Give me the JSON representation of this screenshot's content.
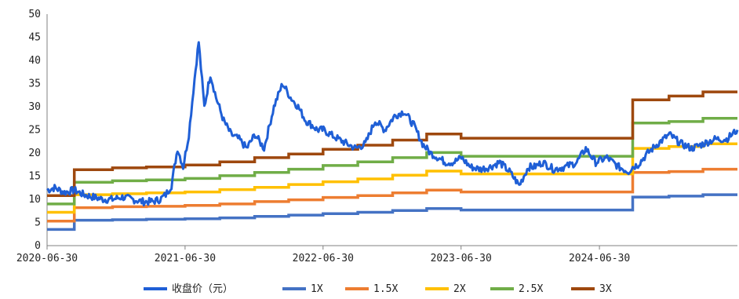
{
  "chart_data": {
    "type": "line",
    "title": "",
    "xlabel": "",
    "ylabel": "",
    "ylim": [
      0,
      50
    ],
    "xlim": [
      "2020-06-30",
      "2025-06-30"
    ],
    "y_ticks": [
      0,
      5,
      10,
      15,
      20,
      25,
      30,
      35,
      40,
      45,
      50
    ],
    "x_ticks": [
      "2020-06-30",
      "2021-06-30",
      "2022-06-30",
      "2023-06-30",
      "2024-06-30"
    ],
    "grid": false,
    "legend_position": "bottom",
    "series": [
      {
        "name": "收盘价（元）",
        "color": "#1f5fd6",
        "style": "jagged",
        "x": [
          "2020-06-30",
          "2020-07-20",
          "2020-08-15",
          "2020-09-10",
          "2020-10-05",
          "2020-10-30",
          "2020-11-25",
          "2020-12-20",
          "2021-01-15",
          "2021-02-10",
          "2021-03-10",
          "2021-04-05",
          "2021-04-25",
          "2021-05-10",
          "2021-05-25",
          "2021-06-10",
          "2021-06-25",
          "2021-07-10",
          "2021-07-25",
          "2021-08-05",
          "2021-08-20",
          "2021-09-05",
          "2021-09-20",
          "2021-10-10",
          "2021-10-30",
          "2021-11-20",
          "2021-12-10",
          "2022-01-01",
          "2022-01-25",
          "2022-02-20",
          "2022-03-15",
          "2022-04-05",
          "2022-04-25",
          "2022-05-15",
          "2022-06-01",
          "2022-06-15",
          "2022-07-01",
          "2022-07-20",
          "2022-08-10",
          "2022-09-01",
          "2022-09-25",
          "2022-10-20",
          "2022-11-15",
          "2022-12-10",
          "2023-01-05",
          "2023-01-30",
          "2023-02-25",
          "2023-03-20",
          "2023-04-10",
          "2023-05-01",
          "2023-05-20",
          "2023-06-10",
          "2023-07-01",
          "2023-07-25",
          "2023-08-20",
          "2023-09-15",
          "2023-10-10",
          "2023-11-05",
          "2023-12-01",
          "2023-12-25",
          "2024-01-10",
          "2024-02-01",
          "2024-03-01",
          "2024-04-01",
          "2024-05-01",
          "2024-05-25",
          "2024-06-20",
          "2024-07-20",
          "2024-08-20",
          "2024-09-15",
          "2024-09-26",
          "2024-10-10",
          "2024-11-05",
          "2024-12-01",
          "2025-01-01",
          "2025-02-01",
          "2025-03-01",
          "2025-04-01",
          "2025-05-01",
          "2025-06-01",
          "2025-06-30"
        ],
        "values": [
          12,
          12.5,
          11.5,
          12,
          11,
          10.5,
          10,
          10,
          10.5,
          10,
          9.5,
          9.5,
          10,
          11,
          13,
          21,
          17,
          24,
          36,
          44,
          30,
          37,
          32,
          27,
          24,
          23,
          21,
          24,
          21,
          30,
          35,
          32,
          30,
          27,
          26,
          25,
          25,
          24,
          23,
          22,
          21,
          22,
          27,
          25,
          28,
          29,
          26,
          22,
          20,
          19,
          18,
          18,
          19,
          17,
          16.5,
          17,
          18,
          16,
          13,
          17,
          17,
          18,
          16.5,
          17,
          18,
          21,
          18,
          19,
          17,
          16,
          17,
          17.5,
          20,
          22,
          24,
          22,
          21,
          22,
          23,
          23,
          25
        ]
      },
      {
        "name": "1X",
        "color": "#4472c4",
        "style": "step",
        "x": [
          "2020-06-30",
          "2020-09-10",
          "2020-12-20",
          "2021-03-20",
          "2021-06-30",
          "2021-09-30",
          "2021-12-31",
          "2022-03-31",
          "2022-06-30",
          "2022-09-30",
          "2022-12-31",
          "2023-03-31",
          "2023-06-30",
          "2023-09-30",
          "2023-12-31",
          "2024-03-31",
          "2024-06-30",
          "2024-09-26",
          "2024-12-31",
          "2025-03-31",
          "2025-06-30"
        ],
        "values": [
          3.5,
          5.5,
          5.6,
          5.7,
          5.8,
          6.0,
          6.3,
          6.6,
          6.9,
          7.2,
          7.6,
          8.0,
          7.7,
          7.7,
          7.7,
          7.7,
          7.7,
          10.5,
          10.7,
          11.0,
          11.0
        ]
      },
      {
        "name": "1.5X",
        "color": "#ed7d31",
        "style": "step",
        "x": [
          "2020-06-30",
          "2020-09-10",
          "2020-12-20",
          "2021-03-20",
          "2021-06-30",
          "2021-09-30",
          "2021-12-31",
          "2022-03-31",
          "2022-06-30",
          "2022-09-30",
          "2022-12-31",
          "2023-03-31",
          "2023-06-30",
          "2023-09-30",
          "2023-12-31",
          "2024-03-31",
          "2024-06-30",
          "2024-09-26",
          "2024-12-31",
          "2025-03-31",
          "2025-06-30"
        ],
        "values": [
          5.3,
          8.2,
          8.4,
          8.5,
          8.7,
          9.0,
          9.5,
          9.9,
          10.4,
          10.8,
          11.4,
          12.0,
          11.6,
          11.6,
          11.6,
          11.6,
          11.6,
          15.8,
          16.0,
          16.5,
          16.5
        ]
      },
      {
        "name": "2X",
        "color": "#ffc000",
        "style": "step",
        "x": [
          "2020-06-30",
          "2020-09-10",
          "2020-12-20",
          "2021-03-20",
          "2021-06-30",
          "2021-09-30",
          "2021-12-31",
          "2022-03-31",
          "2022-06-30",
          "2022-09-30",
          "2022-12-31",
          "2023-03-31",
          "2023-06-30",
          "2023-09-30",
          "2023-12-31",
          "2024-03-31",
          "2024-06-30",
          "2024-09-26",
          "2024-12-31",
          "2025-03-31",
          "2025-06-30"
        ],
        "values": [
          7.2,
          11.0,
          11.2,
          11.4,
          11.6,
          12.1,
          12.6,
          13.2,
          13.8,
          14.4,
          15.2,
          16.1,
          15.5,
          15.5,
          15.5,
          15.5,
          15.5,
          21.0,
          21.4,
          22.0,
          22.0
        ]
      },
      {
        "name": "2.5X",
        "color": "#70ad47",
        "style": "step",
        "x": [
          "2020-06-30",
          "2020-09-10",
          "2020-12-20",
          "2021-03-20",
          "2021-06-30",
          "2021-09-30",
          "2021-12-31",
          "2022-03-31",
          "2022-06-30",
          "2022-09-30",
          "2022-12-31",
          "2023-03-31",
          "2023-06-30",
          "2023-09-30",
          "2023-12-31",
          "2024-03-31",
          "2024-06-30",
          "2024-09-26",
          "2024-12-31",
          "2025-03-31",
          "2025-06-30"
        ],
        "values": [
          9.0,
          13.7,
          14.0,
          14.2,
          14.5,
          15.1,
          15.8,
          16.5,
          17.3,
          18.1,
          19.0,
          20.1,
          19.3,
          19.3,
          19.3,
          19.3,
          19.3,
          26.5,
          26.8,
          27.5,
          27.5
        ]
      },
      {
        "name": "3X",
        "color": "#9e480e",
        "style": "step",
        "x": [
          "2020-06-30",
          "2020-09-10",
          "2020-12-20",
          "2021-03-20",
          "2021-06-30",
          "2021-09-30",
          "2021-12-31",
          "2022-03-31",
          "2022-06-30",
          "2022-09-30",
          "2022-12-31",
          "2023-03-31",
          "2023-06-30",
          "2023-09-30",
          "2023-12-31",
          "2024-03-31",
          "2024-06-30",
          "2024-09-26",
          "2024-12-31",
          "2025-03-31",
          "2025-06-30"
        ],
        "values": [
          10.8,
          16.4,
          16.8,
          17.0,
          17.4,
          18.1,
          19.0,
          19.8,
          20.8,
          21.7,
          22.8,
          24.1,
          23.2,
          23.2,
          23.2,
          23.2,
          23.2,
          31.5,
          32.3,
          33.2,
          33.2
        ]
      }
    ]
  }
}
